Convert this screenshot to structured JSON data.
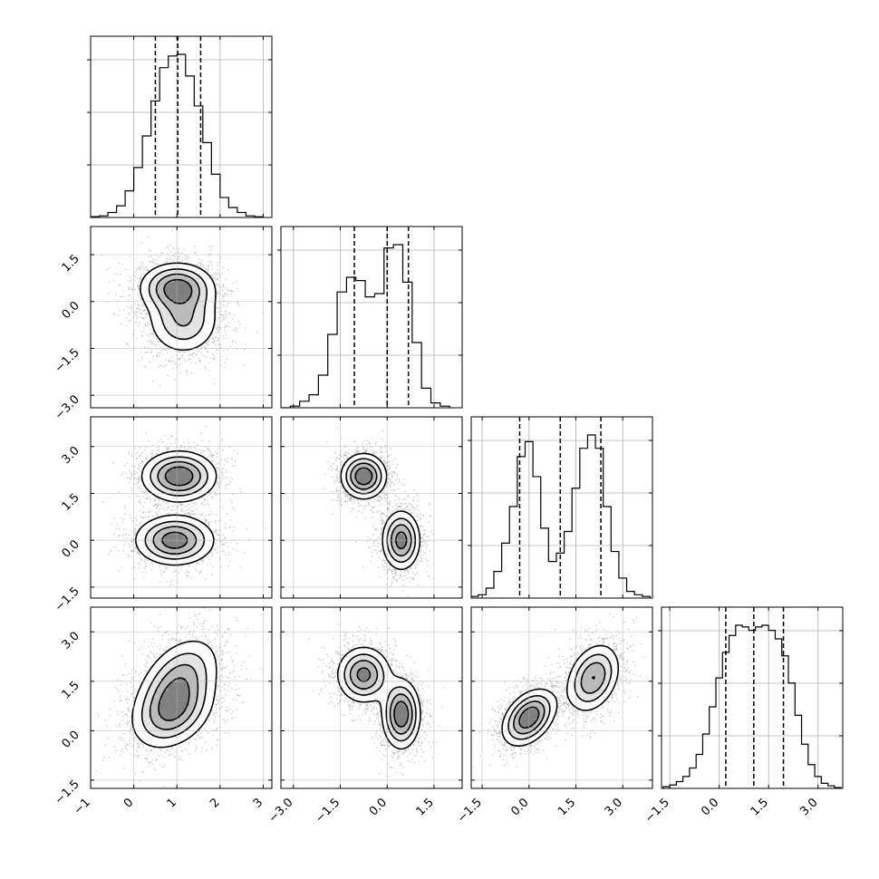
{
  "chart_data": {
    "type": "corner",
    "n_params": 4,
    "grid": true,
    "colors": {
      "line": "#000000",
      "points": "#8c8c8c",
      "grid": "#b0b0b0",
      "density": "#000000"
    },
    "params": [
      {
        "range": [
          -1.0,
          3.2
        ],
        "ticks": [
          -1,
          0,
          1,
          2,
          3
        ],
        "tick_labels": [
          "−1",
          "0",
          "1",
          "2",
          "3"
        ],
        "quantiles": [
          0.5,
          1.02,
          1.55
        ]
      },
      {
        "range": [
          -3.4,
          2.4
        ],
        "ticks": [
          -3.0,
          -1.5,
          0.0,
          1.5
        ],
        "tick_labels": [
          "−3.0",
          "−1.5",
          "0.0",
          "1.5"
        ],
        "quantiles": [
          -1.05,
          0.0,
          0.68
        ]
      },
      {
        "range": [
          -1.85,
          3.95
        ],
        "ticks": [
          -1.5,
          0.0,
          1.5,
          3.0
        ],
        "tick_labels": [
          "−1.5",
          "0.0",
          "1.5",
          "3.0"
        ],
        "quantiles": [
          -0.3,
          1.0,
          2.3
        ]
      },
      {
        "range": [
          -1.75,
          3.75
        ],
        "ticks": [
          -1.5,
          0.0,
          1.5,
          3.0
        ],
        "tick_labels": [
          "−1.5",
          "0.0",
          "1.5",
          "3.0"
        ],
        "quantiles": [
          0.2,
          1.05,
          1.95
        ]
      }
    ],
    "histograms": [
      {
        "param": 0,
        "bins": [
          -0.9,
          -0.7,
          -0.5,
          -0.3,
          -0.1,
          0.1,
          0.3,
          0.5,
          0.7,
          0.9,
          1.1,
          1.3,
          1.5,
          1.7,
          1.9,
          2.1,
          2.3,
          2.5,
          2.7,
          2.9
        ],
        "counts": [
          0.005,
          0.01,
          0.03,
          0.07,
          0.16,
          0.3,
          0.49,
          0.7,
          0.9,
          0.97,
          0.98,
          0.85,
          0.67,
          0.45,
          0.26,
          0.12,
          0.06,
          0.03,
          0.01,
          0.004
        ]
      },
      {
        "param": 1,
        "bins": [
          -3.25,
          -2.95,
          -2.65,
          -2.35,
          -2.05,
          -1.75,
          -1.45,
          -1.15,
          -0.85,
          -0.55,
          -0.25,
          0.05,
          0.35,
          0.65,
          0.95,
          1.25,
          1.55,
          1.85
        ],
        "counts": [
          0.0,
          0.01,
          0.04,
          0.08,
          0.2,
          0.45,
          0.71,
          0.8,
          0.78,
          0.68,
          0.7,
          0.98,
          1.0,
          0.77,
          0.4,
          0.12,
          0.03,
          0.01
        ]
      },
      {
        "param": 2,
        "bins": [
          -1.75,
          -1.5,
          -1.25,
          -1.0,
          -0.75,
          -0.5,
          -0.25,
          0.0,
          0.25,
          0.5,
          0.75,
          1.0,
          1.25,
          1.5,
          1.75,
          2.0,
          2.25,
          2.5,
          2.75,
          3.0,
          3.25,
          3.5,
          3.75
        ],
        "counts": [
          0.01,
          0.02,
          0.06,
          0.16,
          0.33,
          0.55,
          0.85,
          0.94,
          0.73,
          0.42,
          0.22,
          0.27,
          0.4,
          0.66,
          0.9,
          0.98,
          0.9,
          0.55,
          0.28,
          0.12,
          0.04,
          0.02,
          0.01
        ]
      },
      {
        "param": 3,
        "bins": [
          -1.6,
          -1.4,
          -1.2,
          -1.0,
          -0.8,
          -0.6,
          -0.4,
          -0.2,
          0.0,
          0.2,
          0.4,
          0.6,
          0.8,
          1.0,
          1.2,
          1.4,
          1.6,
          1.8,
          2.0,
          2.2,
          2.4,
          2.6,
          2.8,
          3.0,
          3.2,
          3.4,
          3.6
        ],
        "counts": [
          0.01,
          0.02,
          0.04,
          0.07,
          0.12,
          0.2,
          0.32,
          0.48,
          0.65,
          0.8,
          0.9,
          0.96,
          0.95,
          0.93,
          0.95,
          0.96,
          0.93,
          0.88,
          0.78,
          0.62,
          0.43,
          0.26,
          0.14,
          0.07,
          0.03,
          0.015,
          0.005
        ]
      }
    ],
    "contour_levels": [
      0.4,
      0.6,
      0.8,
      0.95
    ],
    "pairs": [
      {
        "x": 0,
        "y": 1,
        "components": [
          {
            "w": 0.52,
            "mx": 1.0,
            "my": 0.45,
            "sx": 0.45,
            "sy": 0.42,
            "rho": 0.0
          },
          {
            "w": 0.48,
            "mx": 1.15,
            "my": -0.6,
            "sx": 0.45,
            "sy": 0.6,
            "rho": 0.0
          }
        ]
      },
      {
        "x": 0,
        "y": 2,
        "components": [
          {
            "w": 0.5,
            "mx": 1.05,
            "my": 2.05,
            "sx": 0.45,
            "sy": 0.42,
            "rho": 0.0
          },
          {
            "w": 0.5,
            "mx": 0.95,
            "my": 0.0,
            "sx": 0.48,
            "sy": 0.42,
            "rho": 0.0
          }
        ]
      },
      {
        "x": 1,
        "y": 2,
        "components": [
          {
            "w": 0.5,
            "mx": -0.75,
            "my": 2.05,
            "sx": 0.38,
            "sy": 0.38,
            "rho": 0.0
          },
          {
            "w": 0.5,
            "mx": 0.45,
            "my": 0.0,
            "sx": 0.32,
            "sy": 0.5,
            "rho": 0.0
          }
        ]
      },
      {
        "x": 0,
        "y": 3,
        "components": [
          {
            "w": 0.5,
            "mx": 1.05,
            "my": 1.55,
            "sx": 0.5,
            "sy": 0.7,
            "rho": 0.4
          },
          {
            "w": 0.5,
            "mx": 0.9,
            "my": 0.55,
            "sx": 0.5,
            "sy": 0.6,
            "rho": 0.3
          }
        ]
      },
      {
        "x": 1,
        "y": 3,
        "components": [
          {
            "w": 0.5,
            "mx": -0.75,
            "my": 1.7,
            "sx": 0.45,
            "sy": 0.45,
            "rho": 0.0
          },
          {
            "w": 0.5,
            "mx": 0.45,
            "my": 0.5,
            "sx": 0.32,
            "sy": 0.55,
            "rho": 0.0
          }
        ]
      },
      {
        "x": 2,
        "y": 3,
        "components": [
          {
            "w": 0.5,
            "mx": 0.0,
            "my": 0.4,
            "sx": 0.45,
            "sy": 0.45,
            "rho": 0.4
          },
          {
            "w": 0.5,
            "mx": 2.05,
            "my": 1.6,
            "sx": 0.45,
            "sy": 0.55,
            "rho": 0.3
          }
        ]
      }
    ]
  }
}
